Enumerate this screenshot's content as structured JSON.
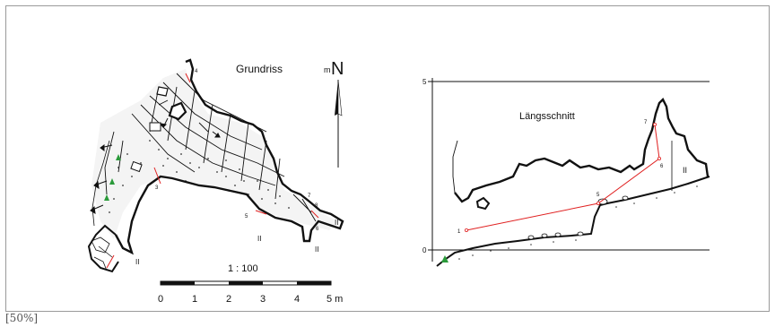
{
  "plan": {
    "title": "Grundriss",
    "north_prefix": "m",
    "north_letter": "N",
    "scale_label": "1 : 100",
    "scale_ticks": [
      "0",
      "1",
      "2",
      "3",
      "4",
      "5 m"
    ],
    "section_marks": [
      "II",
      "II",
      "II",
      "II"
    ],
    "station_numbers": [
      "4",
      "3",
      "5",
      "6",
      "7",
      "8",
      "1",
      "2"
    ]
  },
  "section": {
    "title": "Längsschnitt",
    "y_axis_labels": [
      "5",
      "0"
    ],
    "station_numbers": [
      "1",
      "5",
      "6",
      "7"
    ],
    "section_mark": "II"
  },
  "zoom": "[50%]",
  "colors": {
    "line": "#111111",
    "survey": "#e02020",
    "plant": "#2a9a3a",
    "frame": "#9a9a9a"
  }
}
